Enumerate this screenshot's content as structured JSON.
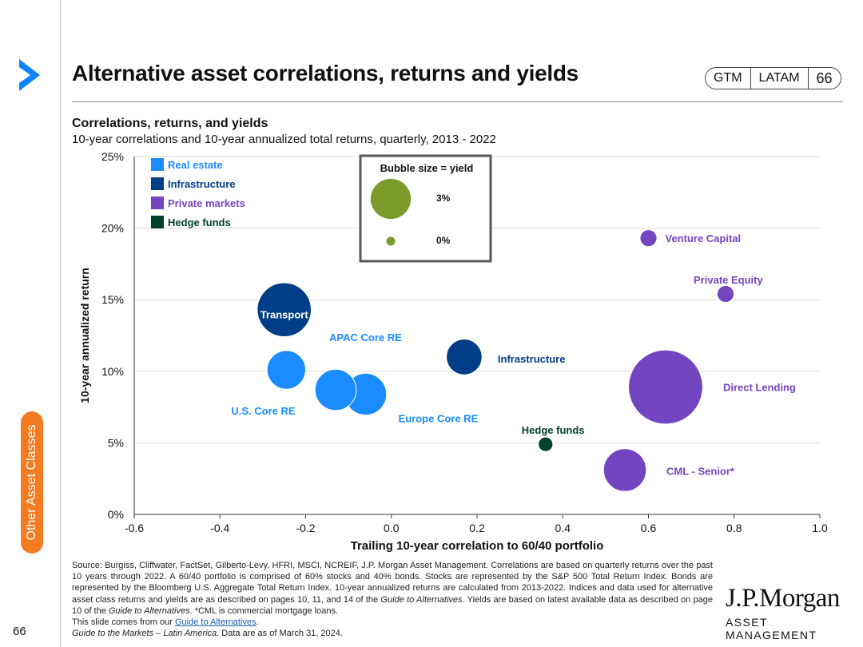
{
  "header": {
    "title": "Alternative asset correlations, returns and yields",
    "gtm": "GTM",
    "region": "LATAM",
    "page": "66"
  },
  "side_tab": {
    "label": "Other Asset Classes"
  },
  "footer": {
    "page_number": "66",
    "source_p1": "Source: Burgiss, Cliffwater, FactSet, Gilberto-Levy, HFRI, MSCI, NCREIF, J.P. Morgan Asset Management. Correlations are based on quarterly returns over the past 10 years through 2022. A 60/40 portfolio is comprised of 60% stocks and 40% bonds. Stocks are represented by the S&P 500 Total Return Index. Bonds are represented by the Bloomberg U.S. Aggregate Total Return Index. 10-year annualized returns are calculated from 2013-2022. Indices and data used for alternative asset class returns and yields are as described on pages 10, 11, and 14 of the ",
    "gta_italic": "Guide to Alternatives",
    "source_p2": ". Yields are based on latest available data as described on page 10 of the ",
    "source_p3": ". *CML is commercial mortgage loans.",
    "slide_from": "This slide comes from our ",
    "link_text": "Guide to Alternatives",
    "link_after": ".",
    "gtm_italic": "Guide to the Markets – Latin America",
    "as_of": ". Data are as of March 31, 2024."
  },
  "brand": {
    "name": "J.P.Morgan",
    "sub": "ASSET MANAGEMENT"
  },
  "colors": {
    "real_estate": "#1a8cff",
    "infrastructure": "#003f87",
    "private_markets": "#7445c0",
    "hedge_funds": "#00412e",
    "bubble_key": "#7a9a2a",
    "grid": "#d9d9d9",
    "brand_orange": "#f47b20",
    "chevron_blue": "#0a84ff"
  },
  "chart_data": {
    "type": "scatter",
    "title": "Correlations, returns, and yields",
    "subtitle": "10-year correlations and 10-year annualized total returns, quarterly, 2013 - 2022",
    "xlabel": "Trailing 10-year correlation to 60/40 portfolio",
    "ylabel": "10-year annualized return",
    "xlim": [
      -0.6,
      1.0
    ],
    "ylim": [
      0,
      25
    ],
    "xticks": [
      -0.6,
      -0.4,
      -0.2,
      0.0,
      0.2,
      0.4,
      0.6,
      0.8,
      1.0
    ],
    "xtick_labels": [
      "-0.6",
      "-0.4",
      "-0.2",
      "0.0",
      "0.2",
      "0.4",
      "0.6",
      "0.8",
      "1.0"
    ],
    "yticks": [
      0,
      5,
      10,
      15,
      20,
      25
    ],
    "ytick_labels": [
      "0%",
      "5%",
      "10%",
      "15%",
      "20%",
      "25%"
    ],
    "grid": "horizontal",
    "bubble_size": "yield",
    "legend": [
      {
        "label": "Real estate",
        "group": "real_estate"
      },
      {
        "label": "Infrastructure",
        "group": "infrastructure"
      },
      {
        "label": "Private markets",
        "group": "private_markets"
      },
      {
        "label": "Hedge funds",
        "group": "hedge_funds"
      }
    ],
    "bubble_key": {
      "title": "Bubble size = yield",
      "items": [
        {
          "label": "3%",
          "yield": 3.0
        },
        {
          "label": "0%",
          "yield": 0.0
        }
      ]
    },
    "points": [
      {
        "name": "Transport",
        "group": "infrastructure",
        "x": -0.25,
        "y": 14.3,
        "yield": 6.2
      },
      {
        "name": "Infrastructure",
        "group": "infrastructure",
        "x": 0.17,
        "y": 11.0,
        "yield": 2.2
      },
      {
        "name": "APAC Core RE",
        "group": "real_estate",
        "x": -0.13,
        "y": 8.7,
        "yield": 3.2
      },
      {
        "name": "U.S. Core RE",
        "group": "real_estate",
        "x": -0.245,
        "y": 10.1,
        "yield": 2.7
      },
      {
        "name": "Europe Core RE",
        "group": "real_estate",
        "x": -0.06,
        "y": 8.4,
        "yield": 3.3
      },
      {
        "name": "Venture Capital",
        "group": "private_markets",
        "x": 0.6,
        "y": 19.3,
        "yield": 0.2
      },
      {
        "name": "Private Equity",
        "group": "private_markets",
        "x": 0.78,
        "y": 15.4,
        "yield": 0.2
      },
      {
        "name": "Direct Lending",
        "group": "private_markets",
        "x": 0.64,
        "y": 8.9,
        "yield": 13.0
      },
      {
        "name": "CML - Senior*",
        "group": "private_markets",
        "x": 0.545,
        "y": 3.1,
        "yield": 3.5
      },
      {
        "name": "Hedge funds",
        "group": "hedge_funds",
        "x": 0.36,
        "y": 4.9,
        "yield": 0.1
      }
    ]
  }
}
